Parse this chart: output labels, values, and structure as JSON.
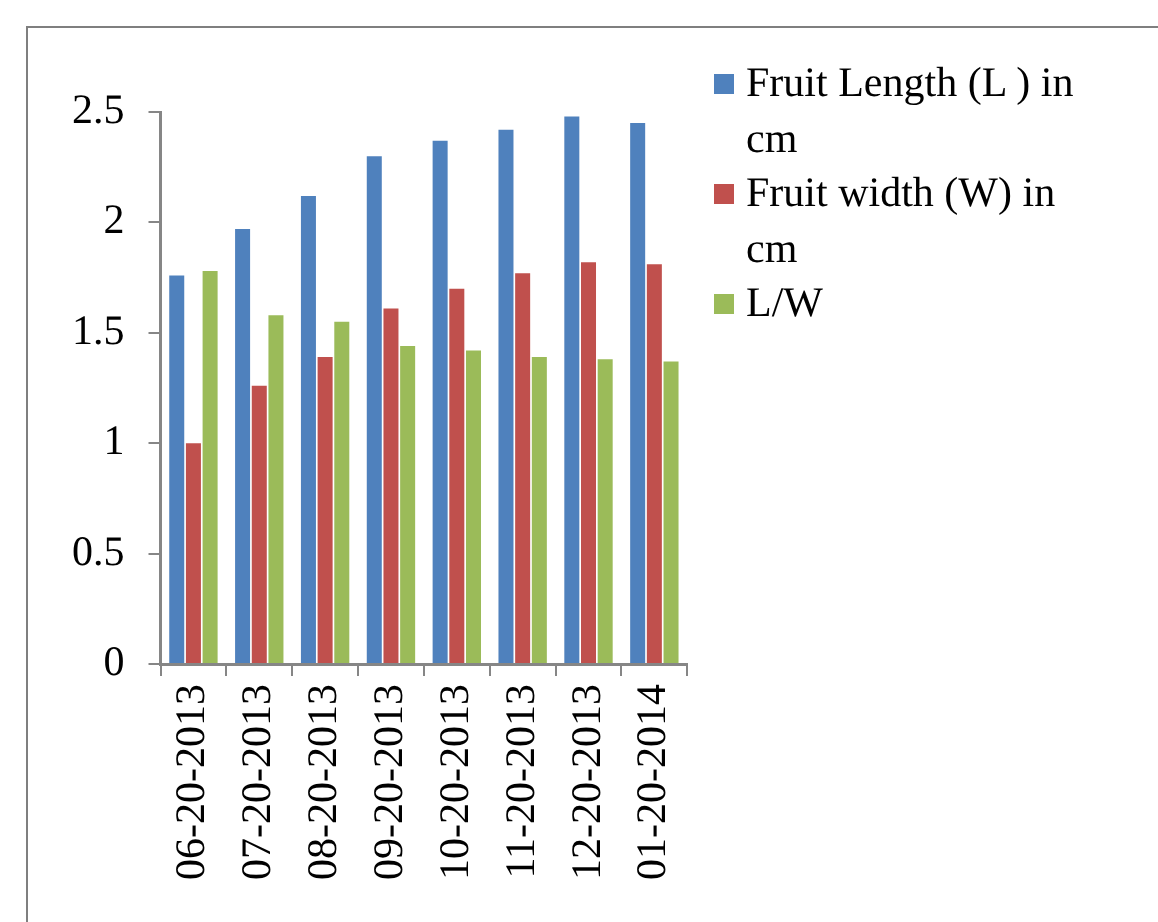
{
  "chart_data": {
    "type": "bar",
    "categories": [
      "06-20-2013",
      "07-20-2013",
      "08-20-2013",
      "09-20-2013",
      "10-20-2013",
      "11-20-2013",
      "12-20-2013",
      "01-20-2014"
    ],
    "series": [
      {
        "name": "Fruit Length (L ) in cm",
        "color": "#4f81bd",
        "values": [
          1.76,
          1.97,
          2.12,
          2.3,
          2.37,
          2.42,
          2.48,
          2.45
        ]
      },
      {
        "name": "Fruit width (W) in cm",
        "color": "#c0504d",
        "values": [
          1.0,
          1.26,
          1.39,
          1.61,
          1.7,
          1.77,
          1.82,
          1.81
        ]
      },
      {
        "name": "L/W",
        "color": "#9bbb59",
        "values": [
          1.78,
          1.58,
          1.55,
          1.44,
          1.42,
          1.39,
          1.38,
          1.37
        ]
      }
    ],
    "ylim": [
      0,
      2.5
    ],
    "yticks": [
      0,
      0.5,
      1,
      1.5,
      2,
      2.5
    ],
    "grid": false,
    "legend": "top right"
  }
}
